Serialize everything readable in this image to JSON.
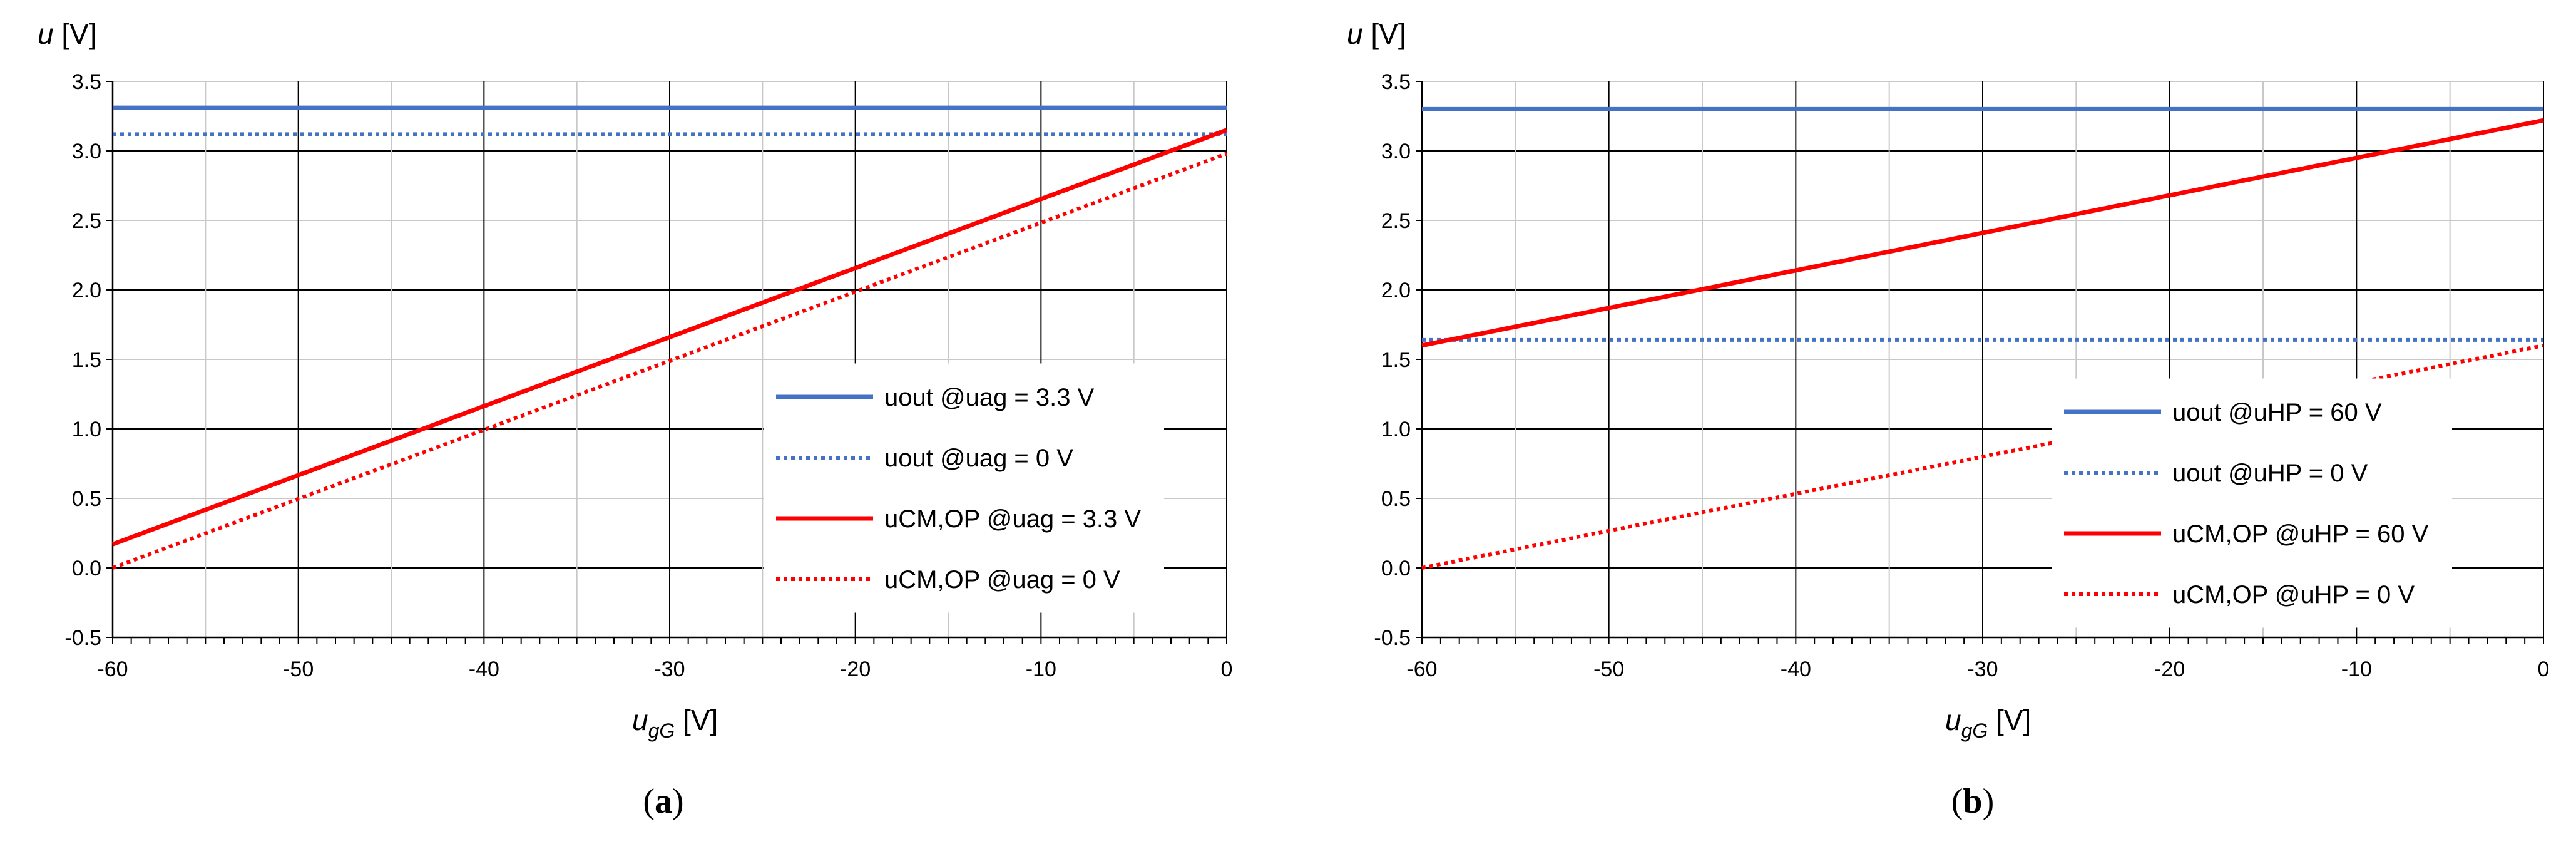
{
  "chart_data": [
    {
      "type": "line",
      "panel_label": {
        "open": "(",
        "letter": "a",
        "close": ")"
      },
      "ylabel": {
        "symbol": "u",
        "unit": "[V]"
      },
      "xlabel": {
        "symbol": "u",
        "sub": "gG",
        "unit": "[V]"
      },
      "xlim": [
        -60,
        0
      ],
      "ylim": [
        -0.5,
        3.5
      ],
      "xticks": [
        -60,
        -50,
        -40,
        -30,
        -20,
        -10,
        0
      ],
      "xtick_labels": [
        "-60",
        "-50",
        "-40",
        "-30",
        "-20",
        "-10",
        "0"
      ],
      "yticks": [
        -0.5,
        0,
        0.5,
        1,
        1.5,
        2,
        2.5,
        3,
        3.5
      ],
      "ytick_labels": [
        "-0.5",
        "0.0",
        "0.5",
        "1.0",
        "1.5",
        "2.0",
        "2.5",
        "3.0",
        "3.5"
      ],
      "grid": true,
      "legend_position": "lower-right",
      "series": [
        {
          "name": "uout @uag = 3.3 V",
          "color": "#4472C4",
          "style": "solid",
          "x": [
            -60,
            0
          ],
          "y": [
            3.31,
            3.31
          ]
        },
        {
          "name": "uout @uag = 0 V",
          "color": "#4472C4",
          "style": "dotted",
          "x": [
            -60,
            0
          ],
          "y": [
            3.12,
            3.12
          ]
        },
        {
          "name": "uCM,OP @uag = 3.3 V",
          "color": "#FF0000",
          "style": "solid",
          "x": [
            -60,
            0
          ],
          "y": [
            0.17,
            3.15
          ]
        },
        {
          "name": "uCM,OP @uag = 0 V",
          "color": "#FF0000",
          "style": "dotted",
          "x": [
            -60,
            0
          ],
          "y": [
            0.0,
            2.98
          ]
        }
      ]
    },
    {
      "type": "line",
      "panel_label": {
        "open": "(",
        "letter": "b",
        "close": ")"
      },
      "ylabel": {
        "symbol": "u",
        "unit": "[V]"
      },
      "xlabel": {
        "symbol": "u",
        "sub": "gG",
        "unit": "[V]"
      },
      "xlim": [
        -60,
        0
      ],
      "ylim": [
        -0.5,
        3.5
      ],
      "xticks": [
        -60,
        -50,
        -40,
        -30,
        -20,
        -10,
        0
      ],
      "xtick_labels": [
        "-60",
        "-50",
        "-40",
        "-30",
        "-20",
        "-10",
        "0"
      ],
      "yticks": [
        -0.5,
        0,
        0.5,
        1,
        1.5,
        2,
        2.5,
        3,
        3.5
      ],
      "ytick_labels": [
        "-0.5",
        "0.0",
        "0.5",
        "1.0",
        "1.5",
        "2.0",
        "2.5",
        "3.0",
        "3.5"
      ],
      "grid": true,
      "legend_position": "lower-right",
      "series": [
        {
          "name": "uout @uHP = 60 V",
          "color": "#4472C4",
          "style": "solid",
          "x": [
            -60,
            0
          ],
          "y": [
            3.3,
            3.3
          ]
        },
        {
          "name": "uout @uHP = 0 V",
          "color": "#4472C4",
          "style": "dotted",
          "x": [
            -60,
            0
          ],
          "y": [
            1.64,
            1.64
          ]
        },
        {
          "name": "uCM,OP @uHP = 60 V",
          "color": "#FF0000",
          "style": "solid",
          "x": [
            -60,
            0
          ],
          "y": [
            1.6,
            3.22
          ]
        },
        {
          "name": "uCM,OP @uHP = 0 V",
          "color": "#FF0000",
          "style": "dotted",
          "x": [
            -60,
            0
          ],
          "y": [
            0.0,
            1.6
          ]
        }
      ]
    }
  ]
}
